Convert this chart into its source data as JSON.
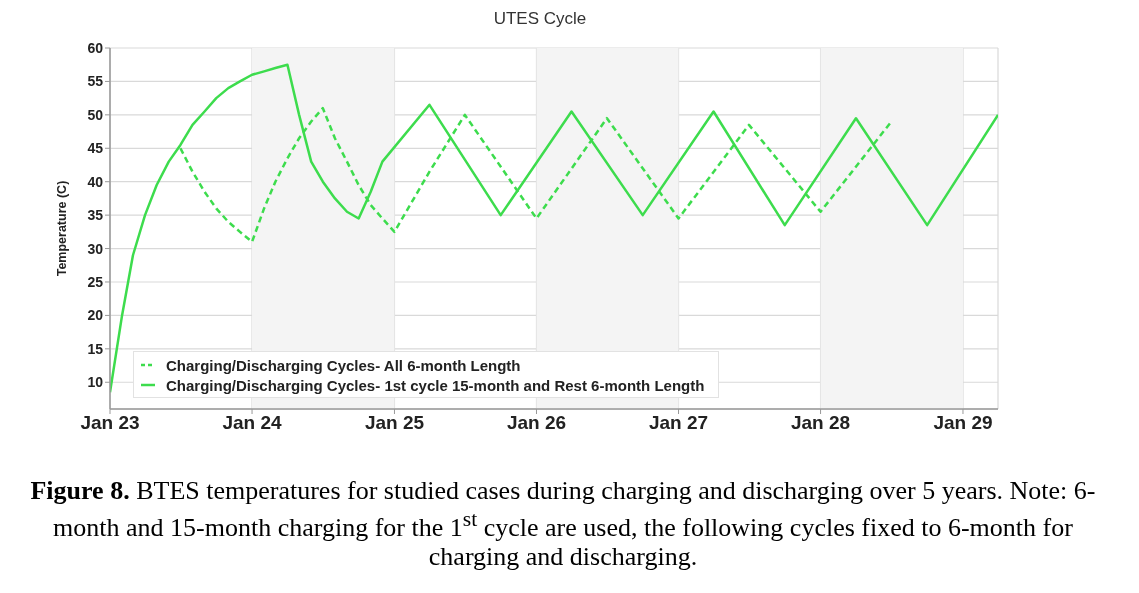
{
  "chart_data": {
    "type": "line",
    "title": "UTES Cycle",
    "ylabel": "Temperature (C)",
    "annotations": [
      "Figure 8. BTES temperatures for studied cases during charging and discharging over 5 years. Note: 6-month and 15-month charging for the 1$^{st}$ cycle are used, the following cycles fixed to 6-month for charging and discharging."
    ],
    "series": [
      {
        "name": "Charging/Discharging Cycles- All 6-month Length",
        "color": "#3ddc4d",
        "line_style": "dashed",
        "x": [
          "2023-07",
          "2023-08",
          "2023-09",
          "2023-10",
          "2023-11",
          "2023-12",
          "2024-01",
          "2024-02",
          "2024-03",
          "2024-04",
          "2024-05",
          "2024-06",
          "2024-07",
          "2024-08",
          "2024-09",
          "2024-10",
          "2024-11",
          "2024-12",
          "2025-01",
          "2025-04",
          "2025-07",
          "2026-01",
          "2026-07",
          "2027-01",
          "2027-07",
          "2028-01",
          "2028-07"
        ],
        "values": [
          45,
          41.5,
          38.5,
          36,
          34,
          32.5,
          31,
          36,
          40,
          43.5,
          46.5,
          49,
          51,
          46.5,
          43,
          39.5,
          36.5,
          34.5,
          32.5,
          41.5,
          50,
          34.5,
          49.5,
          34.5,
          48.5,
          35.5,
          49
        ]
      },
      {
        "name": "Charging/Discharging Cycles- 1st cycle 15-month and Rest 6-month Length",
        "color": "#3ddc4d",
        "line_style": "solid",
        "x": [
          "2023-01",
          "2023-02",
          "2023-03",
          "2023-04",
          "2023-05",
          "2023-06",
          "2023-07",
          "2023-08",
          "2023-09",
          "2023-10",
          "2023-11",
          "2023-12",
          "2024-01",
          "2024-02",
          "2024-03",
          "2024-04",
          "2024-05",
          "2024-06",
          "2024-07",
          "2024-08",
          "2024-09",
          "2024-10",
          "2024-11",
          "2024-12",
          "2025-04",
          "2025-10",
          "2026-04",
          "2026-10",
          "2027-04",
          "2027-10",
          "2028-04",
          "2028-10",
          "2029-04"
        ],
        "values": [
          8.5,
          20,
          29,
          35,
          39.5,
          43,
          45.5,
          48.5,
          50.5,
          52.5,
          54,
          55,
          56,
          56.5,
          57,
          57.5,
          50,
          43,
          40,
          37.5,
          35.5,
          34.5,
          38.5,
          43,
          51.5,
          35,
          50.5,
          35,
          50.5,
          33.5,
          49.5,
          33.5,
          50
        ]
      }
    ],
    "xlim": [
      "2023-01",
      "2029-04"
    ],
    "xticks": [
      {
        "value": "2023-01",
        "label": "Jan 23"
      },
      {
        "value": "2024-01",
        "label": "Jan 24"
      },
      {
        "value": "2025-01",
        "label": "Jan 25"
      },
      {
        "value": "2026-01",
        "label": "Jan 26"
      },
      {
        "value": "2027-01",
        "label": "Jan 27"
      },
      {
        "value": "2028-01",
        "label": "Jan 28"
      },
      {
        "value": "2029-01",
        "label": "Jan 29"
      }
    ],
    "ylim": [
      6,
      60
    ],
    "yticks": [
      10,
      15,
      20,
      25,
      30,
      35,
      40,
      45,
      50,
      55,
      60
    ],
    "bands": [
      {
        "axis": "x",
        "from": "2024-01",
        "to": "2025-01",
        "color": "#f4f4f4"
      },
      {
        "axis": "x",
        "from": "2026-01",
        "to": "2027-01",
        "color": "#f4f4f4"
      },
      {
        "axis": "x",
        "from": "2028-01",
        "to": "2029-01",
        "color": "#f4f4f4"
      }
    ],
    "grid": true,
    "legend": "bottom left"
  }
}
